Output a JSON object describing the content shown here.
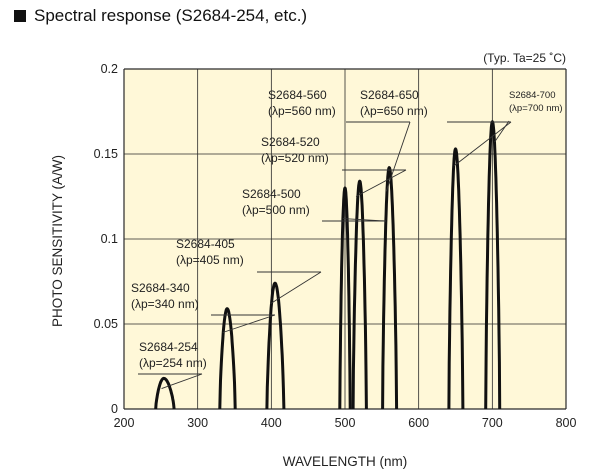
{
  "title": "Spectral response (S2684-254, etc.)",
  "note": "(Typ. Ta=25 ˚C)",
  "colors": {
    "plot_background": "#fff8d8",
    "grid": "#2a2a2a",
    "curve": "#111111"
  },
  "chart_data": {
    "type": "line",
    "title": "Spectral response (S2684-254, etc.)",
    "xlabel": "WAVELENGTH (nm)",
    "ylabel": "PHOTO SENSITIVITY (A/W)",
    "xlim": [
      200,
      800
    ],
    "ylim": [
      0,
      0.2
    ],
    "x_ticks": [
      "200",
      "300",
      "400",
      "500",
      "600",
      "700",
      "800"
    ],
    "y_ticks": [
      "0",
      "0.05",
      "0.1",
      "0.15",
      "0.2"
    ],
    "grid": true,
    "series": [
      {
        "name": "S2684-254",
        "sublabel": "(λp=254 nm)",
        "peak_nm": 254,
        "peak": 0.018,
        "start": 243,
        "end": 268
      },
      {
        "name": "S2684-340",
        "sublabel": "(λp=340 nm)",
        "peak_nm": 340,
        "peak": 0.059,
        "start": 330,
        "end": 351
      },
      {
        "name": "S2684-405",
        "sublabel": "(λp=405 nm)",
        "peak_nm": 405,
        "peak": 0.074,
        "start": 394,
        "end": 417
      },
      {
        "name": "S2684-500",
        "sublabel": "(λp=500 nm)",
        "peak_nm": 500,
        "peak": 0.13,
        "start": 493,
        "end": 507
      },
      {
        "name": "S2684-520",
        "sublabel": "(λp=520 nm)",
        "peak_nm": 520,
        "peak": 0.134,
        "start": 511,
        "end": 529
      },
      {
        "name": "S2684-560",
        "sublabel": "(λp=560 nm)",
        "peak_nm": 560,
        "peak": 0.142,
        "start": 551,
        "end": 570
      },
      {
        "name": "S2684-650",
        "sublabel": "(λp=650 nm)",
        "peak_nm": 650,
        "peak": 0.153,
        "start": 641,
        "end": 660
      },
      {
        "name": "S2684-700",
        "sublabel": "(λp=700 nm)",
        "peak_nm": 700,
        "peak": 0.169,
        "start": 691,
        "end": 710
      }
    ]
  }
}
